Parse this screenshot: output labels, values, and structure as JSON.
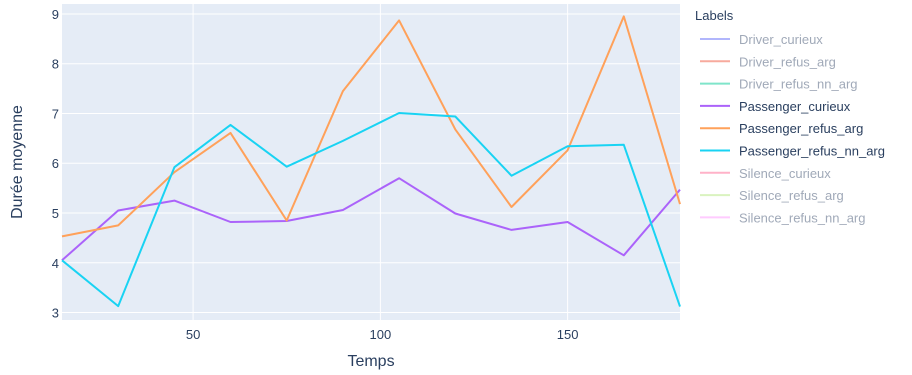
{
  "chart_data": {
    "type": "line",
    "xlabel": "Temps",
    "ylabel": "Durée moyenne",
    "xlim": [
      15,
      180
    ],
    "ylim": [
      2.85,
      9.2
    ],
    "x_ticks": [
      50,
      100,
      150
    ],
    "y_ticks": [
      3,
      4,
      5,
      6,
      7,
      8,
      9
    ],
    "grid": true,
    "plot_background": "#e5ecf6",
    "legend": {
      "title": "Labels",
      "placement": "right",
      "active_text_color": "#2a3f5f",
      "hidden_text_color": "#a0a9b8"
    },
    "series": [
      {
        "name": "Driver_curieux",
        "color": "#636efa",
        "visible": false,
        "x": [],
        "y": []
      },
      {
        "name": "Driver_refus_arg",
        "color": "#ef553b",
        "visible": false,
        "x": [],
        "y": []
      },
      {
        "name": "Driver_refus_nn_arg",
        "color": "#00cc96",
        "visible": false,
        "x": [],
        "y": []
      },
      {
        "name": "Passenger_curieux",
        "color": "#ab63fa",
        "visible": true,
        "x": [
          15,
          30,
          45,
          60,
          75,
          90,
          105,
          120,
          135,
          150,
          165,
          180
        ],
        "y": [
          4.05,
          5.05,
          5.25,
          4.82,
          4.84,
          5.06,
          5.7,
          4.99,
          4.66,
          4.82,
          4.15,
          5.47
        ]
      },
      {
        "name": "Passenger_refus_arg",
        "color": "#ffa15a",
        "visible": true,
        "x": [
          15,
          30,
          45,
          60,
          75,
          90,
          105,
          120,
          135,
          150,
          165,
          180
        ],
        "y": [
          4.53,
          4.75,
          5.82,
          6.61,
          4.85,
          7.45,
          8.87,
          6.68,
          5.12,
          6.26,
          8.95,
          5.18
        ]
      },
      {
        "name": "Passenger_refus_nn_arg",
        "color": "#19d3f3",
        "visible": true,
        "x": [
          15,
          30,
          45,
          60,
          75,
          90,
          105,
          120,
          135,
          150,
          165,
          180
        ],
        "y": [
          4.05,
          3.13,
          5.92,
          6.77,
          5.93,
          6.45,
          7.01,
          6.94,
          5.75,
          6.34,
          6.37,
          3.12
        ]
      },
      {
        "name": "Silence_curieux",
        "color": "#ff6692",
        "visible": false,
        "x": [],
        "y": []
      },
      {
        "name": "Silence_refus_arg",
        "color": "#b6e880",
        "visible": false,
        "x": [],
        "y": []
      },
      {
        "name": "Silence_refus_nn_arg",
        "color": "#ff97ff",
        "visible": false,
        "x": [],
        "y": []
      }
    ]
  }
}
